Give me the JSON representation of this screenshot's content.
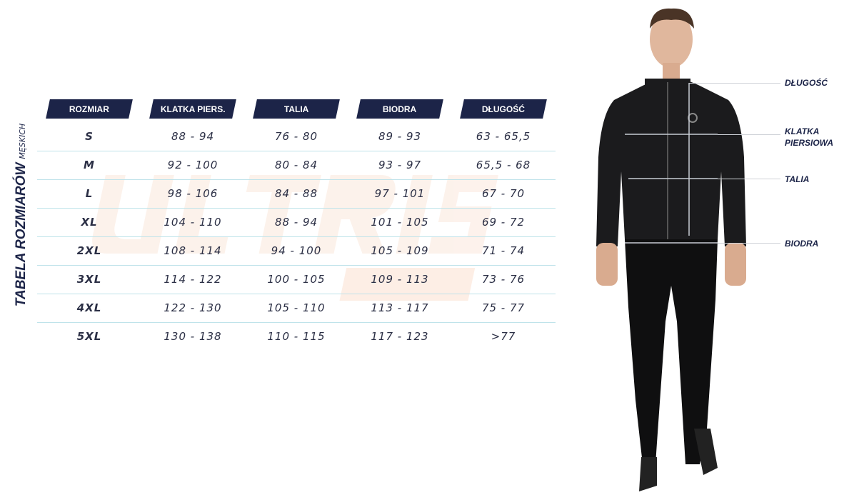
{
  "title": {
    "main": "TABELA ROZMIARÓW",
    "sub": "MĘSKICH"
  },
  "watermark": {
    "brand": "ULTRIS",
    "sub": "SPORT",
    "color": "#f7b88f"
  },
  "colors": {
    "header_bg": "#1c2448",
    "row_line": "#bfe3ea"
  },
  "table": {
    "headers": [
      "ROZMIAR",
      "KLATKA PIERS.",
      "TALIA",
      "BIODRA",
      "DŁUGOŚĆ"
    ],
    "rows": [
      [
        "S",
        "88 - 94",
        "76 - 80",
        "89 - 93",
        "63 - 65,5"
      ],
      [
        "M",
        "92 - 100",
        "80 - 84",
        "93 - 97",
        "65,5 - 68"
      ],
      [
        "L",
        "98 - 106",
        "84 - 88",
        "97 - 101",
        "67 - 70"
      ],
      [
        "XL",
        "104 - 110",
        "88 - 94",
        "101 - 105",
        "69 - 72"
      ],
      [
        "2XL",
        "108 - 114",
        "94 - 100",
        "105 - 109",
        "71 - 74"
      ],
      [
        "3XL",
        "114 - 122",
        "100 - 105",
        "109 - 113",
        "73 - 76"
      ],
      [
        "4XL",
        "122 - 130",
        "105 - 110",
        "113 - 117",
        "75 - 77"
      ],
      [
        "5XL",
        "130 - 138",
        "110 - 115",
        "117 - 123",
        ">77"
      ]
    ]
  },
  "measurements": {
    "length": "DŁUGOŚĆ",
    "chest_1": "KLATKA",
    "chest_2": "PIERSIOWA",
    "waist": "TALIA",
    "hips": "BIODRA"
  }
}
